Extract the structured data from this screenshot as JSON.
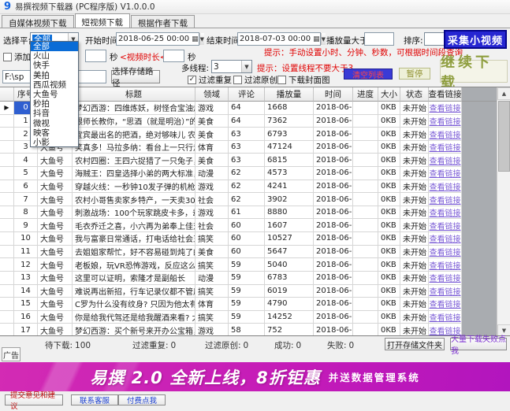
{
  "window": {
    "title": "易撰视频下载器 (PC程序版) V1.0.0.0",
    "logo_glyph": "9"
  },
  "tabs": [
    {
      "label": "自媒体视频下载"
    },
    {
      "label": "短视频下载"
    },
    {
      "label": "根据作者下载"
    }
  ],
  "controls": {
    "platform_label": "选择平台:",
    "platform_selected": "全部",
    "platform_options": [
      "全部",
      "火山",
      "快手",
      "美拍",
      "西瓜视频",
      "大鱼号",
      "秒拍",
      "抖音",
      "微视",
      "映客",
      "小影"
    ],
    "start_label": "开始时间:",
    "start_value": "2018-06-25 00:00",
    "end_label": "结束时间:",
    "end_value": "2018-07-03 00:00",
    "plays_label": "播放量大于:",
    "plays_value": "",
    "sort_label": "排序:",
    "sort_value": "",
    "collect_button": "采集小视频",
    "hint_time": "提示：手动设置小时、分钟、秒数，可根据时间段查询",
    "add_checkbox_label": "添加数",
    "duration_value1": "",
    "duration_unit1": "秒",
    "duration_mid": "<视频时长<",
    "duration_value2": "",
    "duration_unit2": "秒",
    "threads_label": "多线程:",
    "threads_value": "3",
    "hint_threads": "提示：设置线程不要大于3",
    "path_value": "F:\\sp",
    "choose_path_button": "选择存储路径",
    "filter_dup_label": "过滤重复",
    "filter_orig_label": "过滤原创",
    "download_cover_label": "下载封面图",
    "clear_button": "清空列表",
    "pause_button": "暂停",
    "continue_button": "继续下载"
  },
  "table": {
    "headers": [
      "序号",
      "平台",
      "标题",
      "领域",
      "评论",
      "播放量",
      "时间",
      "进度",
      "大小",
      "状态",
      "查看链接"
    ],
    "link_text": "查看链接",
    "rows": [
      {
        "no": "0",
        "platform": "大鱼号",
        "title": "梦幻西游：四维炼妖，树怪合宝油炸，水攻...",
        "field": "游戏",
        "comments": "64",
        "plays": "1668",
        "time": "2018-06-29 1...",
        "progress": "",
        "size": "0KB",
        "status": "未开始",
        "selected": true
      },
      {
        "no": "1",
        "platform": "大鱼号",
        "title": "跟师长教你，“思酒（就是明治）”的制作...",
        "field": "美食",
        "comments": "64",
        "plays": "7362",
        "time": "2018-06-26 0...",
        "progress": "",
        "size": "0KB",
        "status": "未开始",
        "selected": false
      },
      {
        "no": "2",
        "platform": "大鱼号",
        "title": "宜宾最出名的把酒，绝对够味儿 农村小...",
        "field": "美食",
        "comments": "63",
        "plays": "6793",
        "time": "2018-06-27 1...",
        "progress": "",
        "size": "0KB",
        "status": "未开始",
        "selected": false
      },
      {
        "no": "3",
        "platform": "大鱼号",
        "title": "笑真多！马拉多纳：看台上一只行走的表情包",
        "field": "体育",
        "comments": "63",
        "plays": "47124",
        "time": "2018-06-27 0...",
        "progress": "",
        "size": "0KB",
        "status": "未开始",
        "selected": false
      },
      {
        "no": "4",
        "platform": "大鱼号",
        "title": "农村四圈：王四六捉猎了一只兔子，全家...",
        "field": "美食",
        "comments": "63",
        "plays": "6815",
        "time": "2018-06-26 2...",
        "progress": "",
        "size": "0KB",
        "status": "未开始",
        "selected": false
      },
      {
        "no": "5",
        "platform": "大鱼号",
        "title": "海贼王：四皇选择小弟的两大标准，德怀红...",
        "field": "动漫",
        "comments": "62",
        "plays": "4573",
        "time": "2018-06-29 1...",
        "progress": "",
        "size": "0KB",
        "status": "未开始",
        "selected": false
      },
      {
        "no": "6",
        "platform": "大鱼号",
        "title": "穿越火线：一秒钟10发子弹的机枪，石建...",
        "field": "游戏",
        "comments": "62",
        "plays": "4241",
        "time": "2018-06-27 1...",
        "progress": "",
        "size": "0KB",
        "status": "未开始",
        "selected": false
      },
      {
        "no": "7",
        "platform": "大鱼号",
        "title": "农村小哥售卖家乡特产，一天卖300斤，吃...",
        "field": "社会",
        "comments": "62",
        "plays": "3902",
        "time": "2018-06-26 2...",
        "progress": "",
        "size": "0KB",
        "status": "未开始",
        "selected": false
      },
      {
        "no": "8",
        "platform": "大鱼号",
        "title": "刺激战场：100个玩家跳皮卡多，却没人去...",
        "field": "游戏",
        "comments": "61",
        "plays": "8880",
        "time": "2018-06-28 1...",
        "progress": "",
        "size": "0KB",
        "status": "未开始",
        "selected": false
      },
      {
        "no": "9",
        "platform": "大鱼号",
        "title": "毛衣乔迁之喜，小六再为弟奉上佳对联祝...",
        "field": "社会",
        "comments": "60",
        "plays": "1607",
        "time": "2018-06-30 0...",
        "progress": "",
        "size": "0KB",
        "status": "未开始",
        "selected": false
      },
      {
        "no": "10",
        "platform": "大鱼号",
        "title": "我与富豪日常通话，打电话给社会王买枪...",
        "field": "搞笑",
        "comments": "60",
        "plays": "10527",
        "time": "2018-06-27 0...",
        "progress": "",
        "size": "0KB",
        "status": "未开始",
        "selected": false
      },
      {
        "no": "11",
        "platform": "大鱼号",
        "title": "去姐姐家帮忙，好不容易碰到炖了的火龙...",
        "field": "美食",
        "comments": "60",
        "plays": "5647",
        "time": "2018-06-29 1...",
        "progress": "",
        "size": "0KB",
        "status": "未开始",
        "selected": false
      },
      {
        "no": "12",
        "platform": "大鱼号",
        "title": "老板娘，玩VR恐怖游戏，反应这么大的第...",
        "field": "搞笑",
        "comments": "59",
        "plays": "5040",
        "time": "2018-06-30 1...",
        "progress": "",
        "size": "0KB",
        "status": "未开始",
        "selected": false
      },
      {
        "no": "13",
        "platform": "大鱼号",
        "title": "这里可以证明，索隆才是副船长",
        "field": "动漫",
        "comments": "59",
        "plays": "6783",
        "time": "2018-06-26 2...",
        "progress": "",
        "size": "0KB",
        "status": "未开始",
        "selected": false
      },
      {
        "no": "14",
        "platform": "大鱼号",
        "title": "难说再出新招，行车记录仪都不管用，让...",
        "field": "搞笑",
        "comments": "59",
        "plays": "6019",
        "time": "2018-06-27 0...",
        "progress": "",
        "size": "0KB",
        "status": "未开始",
        "selected": false
      },
      {
        "no": "15",
        "platform": "大鱼号",
        "title": "C罗为什么没有纹身? 只因为他太有爱心，...",
        "field": "体育",
        "comments": "59",
        "plays": "4790",
        "time": "2018-06-27 1...",
        "progress": "",
        "size": "0KB",
        "status": "未开始",
        "selected": false
      },
      {
        "no": "16",
        "platform": "大鱼号",
        "title": "你是给我代驾还是给我醒酒来看? 太搞笑了",
        "field": "搞笑",
        "comments": "59",
        "plays": "14252",
        "time": "2018-06-29 1...",
        "progress": "",
        "size": "0KB",
        "status": "未开始",
        "selected": false
      },
      {
        "no": "17",
        "platform": "大鱼号",
        "title": "梦幻西游：买个新号来开办公宝箱，运气...",
        "field": "游戏",
        "comments": "58",
        "plays": "752",
        "time": "2018-06-30 1...",
        "progress": "",
        "size": "0KB",
        "status": "未开始",
        "selected": false
      }
    ]
  },
  "status_bar": {
    "items": [
      {
        "label": "待下载:",
        "value": "100"
      },
      {
        "label": "过滤重复:",
        "value": "0"
      },
      {
        "label": "过滤原创:",
        "value": "0"
      },
      {
        "label": "成功:",
        "value": "0"
      },
      {
        "label": "失败:",
        "value": "0"
      }
    ],
    "open_folder_button": "打开存储文件夹",
    "fail_help_button": "大量下载失败点我"
  },
  "ad": {
    "tab_label": "广告",
    "banner_main": "易撰 2.0 全新上线，8折钜惠",
    "banner_sub": "并送数据管理系统"
  },
  "footer": {
    "buttons": [
      {
        "label": "提交意见和建议",
        "tone": "red"
      },
      {
        "label": "联系客服",
        "tone": "blue"
      },
      {
        "label": "付费点我",
        "tone": "blue"
      }
    ]
  },
  "colors": {
    "accent_blue_button": "#2626d2",
    "banner_magenta": "#c31ab8",
    "link_purple": "#7b5cd6",
    "hint_red": "#e00000",
    "selected_cell_blue": "#2f5fd0"
  }
}
